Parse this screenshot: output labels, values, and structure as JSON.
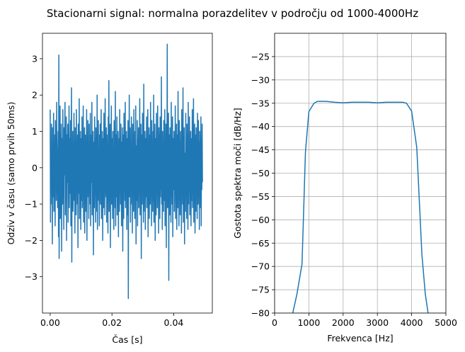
{
  "figure": {
    "title": "Stacionarni signal: normalna porazdelitev v področju od 1000-4000Hz"
  },
  "colors": {
    "series": "#1f77b4",
    "grid": "#b0b0b0"
  },
  "chart_data": [
    {
      "type": "line",
      "title": "",
      "xlabel": "Čas [s]",
      "ylabel": "Odziv v času (samo prvih 50ms)",
      "xlim": [
        -0.0025,
        0.0525
      ],
      "ylim": [
        -4.0,
        3.7
      ],
      "grid": false,
      "xticks": [
        {
          "value": 0.0,
          "label": "0.00"
        },
        {
          "value": 0.02,
          "label": "0.02"
        },
        {
          "value": 0.04,
          "label": "0.04"
        }
      ],
      "yticks": [
        {
          "value": -3,
          "label": "−3"
        },
        {
          "value": -2,
          "label": "−2"
        },
        {
          "value": -1,
          "label": "−1"
        },
        {
          "value": 0,
          "label": "0"
        },
        {
          "value": 1,
          "label": "1"
        },
        {
          "value": 2,
          "label": "2"
        },
        {
          "value": 3,
          "label": "3"
        }
      ],
      "series": [
        {
          "sample_interval": 0.0001,
          "values": [
            1.6,
            -1.5,
            0.8,
            -0.6,
            1.2,
            -1.0,
            0.4,
            -2.1,
            1.1,
            -0.8,
            0.3,
            1.5,
            -1.2,
            0.7,
            -0.4,
            0.9,
            -1.6,
            1.3,
            -0.2,
            0.6,
            -0.9,
            1.8,
            -0.7,
            0.2,
            -1.1,
            0.5,
            1.0,
            -1.9,
            3.1,
            -2.5,
            0.6,
            -0.3,
            1.7,
            -1.4,
            0.9,
            -0.6,
            1.2,
            -2.3,
            0.4,
            0.8,
            -1.0,
            1.6,
            -0.5,
            0.3,
            -1.7,
            1.1,
            -0.2,
            0.7,
            1.8,
            -1.3,
            0.5,
            -0.8,
            1.4,
            -2.0,
            0.9,
            -0.4,
            0.2,
            1.2,
            -1.5,
            0.6,
            -0.1,
            1.7,
            -1.1,
            0.8,
            -0.7,
            0.3,
            1.3,
            -1.6,
            0.5,
            2.2,
            -2.6,
            0.7,
            -0.3,
            1.0,
            -1.2,
            0.4,
            -0.9,
            1.5,
            -0.6,
            0.2,
            -1.8,
            1.1,
            -0.4,
            0.8,
            -1.3,
            1.6,
            -0.5,
            0.1,
            -1.0,
            0.9,
            -2.2,
            1.2,
            0.3,
            -0.7,
            1.9,
            -1.4,
            0.6,
            -0.2,
            1.0,
            -1.7,
            0.4,
            0.8,
            -0.9,
            1.4,
            -1.1,
            0.2,
            -0.6,
            1.7,
            -1.5,
            0.7,
            -0.3,
            1.1,
            -1.8,
            0.5,
            0.9,
            -1.2,
            0.3,
            -0.5,
            1.6,
            -2.0,
            0.8,
            -0.1,
            1.3,
            -0.8,
            0.4,
            -1.4,
            1.2,
            -0.7,
            0.6,
            -1.0,
            1.5,
            -1.6,
            0.2,
            0.9,
            -0.4,
            1.8,
            -1.3,
            0.5,
            -0.9,
            1.0,
            -2.4,
            0.7,
            0.3,
            -1.1,
            1.4,
            -0.6,
            0.8,
            -1.5,
            1.1,
            -0.2,
            0.6,
            -1.2,
            2.0,
            -1.7,
            0.4,
            -0.3,
            1.3,
            -0.9,
            0.5,
            -1.6,
            0.9,
            -0.5,
            1.2,
            -1.0,
            0.1,
            1.6,
            -1.4,
            0.7,
            -0.6,
            1.0,
            -2.0,
            0.3,
            0.8,
            -1.1,
            1.5,
            -0.4,
            0.6,
            -1.3,
            1.9,
            -0.8,
            0.2,
            -0.7,
            1.1,
            -1.5,
            0.9,
            -0.2,
            0.5,
            -1.8,
            1.4,
            -0.9,
            2.4,
            -1.2,
            0.4,
            -0.5,
            1.2,
            -2.2,
            0.7,
            -0.1,
            1.7,
            -1.0,
            0.3,
            0.8,
            -1.4,
            1.0,
            -0.6,
            0.5,
            -1.7,
            1.3,
            -0.3,
            0.6,
            -1.1,
            2.1,
            -1.6,
            0.2,
            0.9,
            -0.8,
            1.4,
            -1.3,
            0.4,
            -0.4,
            1.0,
            -1.9,
            0.8,
            0.3,
            -1.2,
            1.6,
            -0.7,
            0.5,
            -1.0,
            1.2,
            -0.2,
            -1.6,
            0.7,
            -0.5,
            1.1,
            -2.3,
            0.9,
            0.1,
            -1.4,
            1.5,
            -0.6,
            0.3,
            -0.9,
            1.8,
            -1.1,
            0.6,
            -0.3,
            1.0,
            -1.7,
            0.4,
            0.8,
            -1.3,
            1.3,
            -3.6,
            0.5,
            -0.4,
            2.0,
            -0.8,
            0.2,
            1.1,
            -1.5,
            0.7,
            -0.6,
            1.4,
            -1.0,
            0.3,
            -1.8,
            1.2,
            -0.2,
            0.9,
            -1.2,
            1.6,
            -0.7,
            0.5,
            -1.4,
            1.0,
            -0.3,
            1.7,
            -2.1,
            0.6,
            0.2,
            -0.9,
            1.3,
            -1.6,
            0.8,
            -0.5,
            1.1,
            -1.1,
            0.4,
            -0.1,
            1.9,
            -1.3,
            0.7,
            -0.6,
            1.2,
            -2.5,
            0.9,
            0.3,
            -1.0,
            1.5,
            -0.4,
            0.6,
            -1.5,
            2.3,
            -1.2,
            0.2,
            -0.7,
            1.0,
            -1.7,
            0.5,
            0.8,
            -0.8,
            1.4,
            -1.1,
            0.3,
            -0.3,
            1.6,
            -1.9,
            0.7,
            -0.5,
            1.1,
            -1.4,
            0.4,
            0.9,
            -1.0,
            1.8,
            -0.6,
            0.1,
            -1.6,
            1.3,
            -0.2,
            0.6,
            -1.2,
            1.0,
            -0.9,
            2.0,
            -1.5,
            0.5,
            -0.4,
            1.2,
            -2.0,
            0.8,
            0.2,
            -1.3,
            1.5,
            -0.7,
            0.3,
            -1.1,
            1.7,
            -0.5,
            0.6,
            -1.8,
            1.1,
            -0.1,
            0.9,
            -1.4,
            1.4,
            -0.8,
            0.4,
            -0.6,
            2.5,
            -1.0,
            0.7,
            -1.7,
            1.0,
            -0.3,
            0.5,
            -1.2,
            1.3,
            -0.9,
            0.2,
            1.6,
            -1.6,
            0.8,
            -0.4,
            1.2,
            -2.2,
            0.6,
            -0.2,
            3.4,
            -1.1,
            0.4,
            -0.7,
            1.5,
            -3.1,
            0.9,
            0.3,
            -1.3,
            1.1,
            -0.5,
            0.7,
            -1.5,
            1.8,
            -0.8,
            0.2,
            -1.0,
            1.4,
            -1.9,
            0.5,
            0.8,
            -0.6,
            1.0,
            -1.2,
            0.3,
            -0.3,
            1.7,
            -1.4,
            0.6,
            -0.9,
            1.2,
            -1.7,
            0.4,
            0.9,
            -1.1,
            2.1,
            -0.7,
            0.1,
            -1.6,
            1.3,
            -0.4,
            0.7,
            -1.3,
            1.0,
            -0.2,
            0.5,
            -1.8,
            1.6,
            -0.6,
            0.3,
            -1.0,
            2.2,
            -1.5,
            0.8,
            -0.5,
            1.1,
            -2.1,
            0.4,
            0.2,
            -1.2,
            1.5,
            -0.8,
            0.6,
            -1.4,
            1.2,
            -0.3,
            0.9,
            -1.7,
            1.8,
            -1.0,
            0.5,
            -0.6,
            1.4,
            -1.3,
            0.7,
            -0.1,
            1.0,
            -1.6,
            0.3,
            0.8,
            -0.9,
            1.6,
            -1.1,
            0.4,
            -0.4,
            1.9,
            -1.5,
            0.6,
            -0.7,
            1.2,
            -1.8,
            0.2,
            0.9,
            -1.2,
            1.1,
            -0.5,
            0.5,
            -1.4,
            1.5,
            -0.2,
            -1.0,
            1.3,
            -0.8,
            0.7,
            -1.7,
            1.0,
            -0.3,
            0.4,
            -1.1,
            1.4,
            -1.6,
            0.8,
            -0.6,
            1.2,
            -0.4
          ]
        }
      ]
    },
    {
      "type": "line",
      "title": "",
      "xlabel": "Frekvenca [Hz]",
      "ylabel": "Gostota spektra moči [dB/Hz]",
      "xlim": [
        0,
        5000
      ],
      "ylim": [
        -80,
        -20
      ],
      "grid": true,
      "xticks": [
        {
          "value": 0,
          "label": "0"
        },
        {
          "value": 1000,
          "label": "1000"
        },
        {
          "value": 2000,
          "label": "2000"
        },
        {
          "value": 3000,
          "label": "3000"
        },
        {
          "value": 4000,
          "label": "4000"
        },
        {
          "value": 5000,
          "label": "5000"
        }
      ],
      "yticks": [
        {
          "value": -80,
          "label": "−80"
        },
        {
          "value": -75,
          "label": "−75"
        },
        {
          "value": -70,
          "label": "−70"
        },
        {
          "value": -65,
          "label": "−65"
        },
        {
          "value": -60,
          "label": "−60"
        },
        {
          "value": -55,
          "label": "−55"
        },
        {
          "value": -50,
          "label": "−50"
        },
        {
          "value": -45,
          "label": "−45"
        },
        {
          "value": -40,
          "label": "−40"
        },
        {
          "value": -35,
          "label": "−35"
        },
        {
          "value": -30,
          "label": "−30"
        },
        {
          "value": -25,
          "label": "−25"
        }
      ],
      "series": [
        {
          "x": [
            500,
            650,
            800,
            900,
            1000,
            1150,
            1250,
            1500,
            1750,
            2000,
            2250,
            2500,
            2750,
            3000,
            3250,
            3500,
            3750,
            3850,
            4000,
            4150,
            4300,
            4400,
            4500
          ],
          "y": [
            -81,
            -76,
            -69.5,
            -45.5,
            -36.8,
            -35.0,
            -34.6,
            -34.6,
            -34.8,
            -34.9,
            -34.8,
            -34.8,
            -34.8,
            -34.9,
            -34.8,
            -34.8,
            -34.8,
            -35.0,
            -36.7,
            -44.5,
            -67.5,
            -76,
            -81
          ]
        }
      ]
    }
  ]
}
